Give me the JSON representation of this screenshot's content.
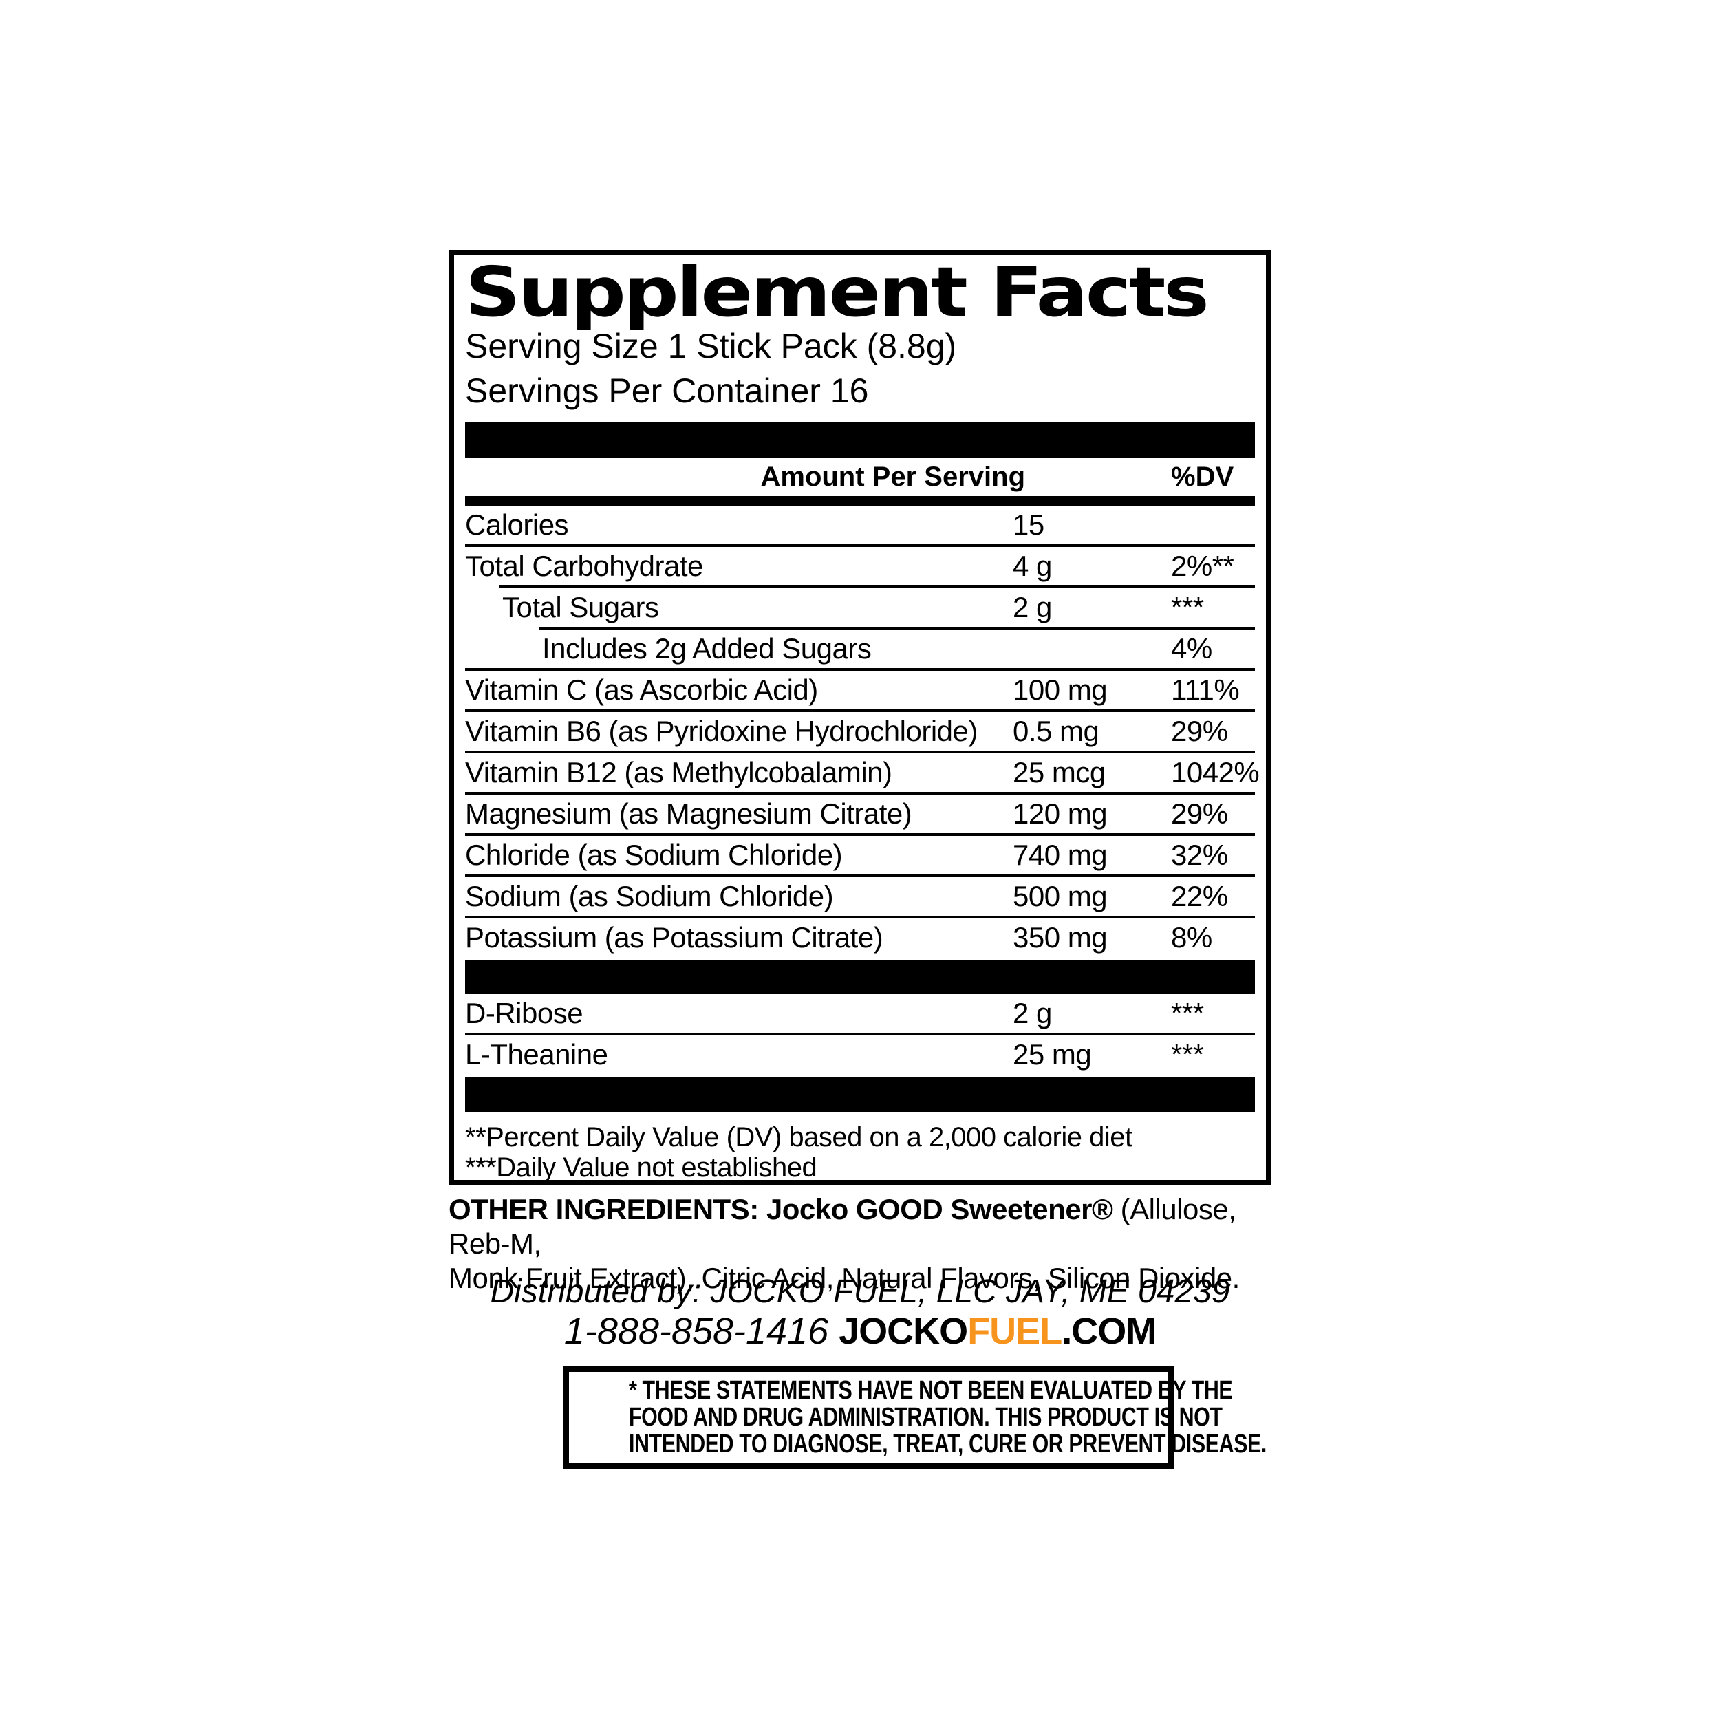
{
  "label": {
    "title": "Supplement Facts",
    "serving_size": "Serving Size 1 Stick Pack (8.8g)",
    "servings_per_container": "Servings Per Container 16",
    "header": {
      "amount": "Amount Per Serving",
      "dv": "%DV"
    },
    "rows": [
      {
        "name": "Calories",
        "amount": "15",
        "dv": ""
      },
      {
        "name": "Total Carbohydrate",
        "amount": "4 g",
        "dv": "2%**"
      },
      {
        "name": "Total Sugars",
        "amount": "2 g",
        "dv": "***"
      },
      {
        "name": "Includes 2g Added Sugars",
        "amount": "",
        "dv": "4%"
      },
      {
        "name": "Vitamin C (as Ascorbic Acid)",
        "amount": "100 mg",
        "dv": "111%"
      },
      {
        "name": "Vitamin B6 (as Pyridoxine Hydrochloride)",
        "amount": "0.5 mg",
        "dv": "29%"
      },
      {
        "name": "Vitamin B12 (as Methylcobalamin)",
        "amount": "25 mcg",
        "dv": "1042%"
      },
      {
        "name": "Magnesium (as Magnesium Citrate)",
        "amount": "120 mg",
        "dv": "29%"
      },
      {
        "name": "Chloride (as Sodium Chloride)",
        "amount": "740 mg",
        "dv": "32%"
      },
      {
        "name": "Sodium (as Sodium Chloride)",
        "amount": "500 mg",
        "dv": "22%"
      },
      {
        "name": "Potassium (as Potassium Citrate)",
        "amount": "350 mg",
        "dv": "8%"
      },
      {
        "name": "D-Ribose",
        "amount": "2 g",
        "dv": "***"
      },
      {
        "name": "L-Theanine",
        "amount": "25 mg",
        "dv": "***"
      }
    ],
    "footnotes": [
      "**Percent Daily Value (DV) based on a 2,000 calorie diet",
      "***Daily Value not established"
    ]
  },
  "other_ingredients": {
    "bold_lead": "OTHER INGREDIENTS: Jocko GOOD Sweetener®",
    "line1_rest": " (Allulose, Reb-M,",
    "line2": "Monk Fruit Extract), Citric Acid, Natural Flavors, Silicon Dioxide."
  },
  "distribution": {
    "distributed_by": "Distributed by: JOCKO FUEL, LLC JAY, ME 04239",
    "phone": "1-888-858-1416",
    "site_jocko": "JOCKO",
    "site_fuel": "FUEL",
    "site_com": ".COM"
  },
  "disclaimer": {
    "line1": "* THESE STATEMENTS HAVE NOT BEEN EVALUATED BY THE",
    "line2": "FOOD AND DRUG ADMINISTRATION. THIS PRODUCT IS NOT",
    "line3": "INTENDED TO DIAGNOSE, TREAT, CURE OR PREVENT DISEASE."
  },
  "colors": {
    "text": "#000000",
    "accent_orange": "#F7941E",
    "background": "#FFFFFF"
  }
}
